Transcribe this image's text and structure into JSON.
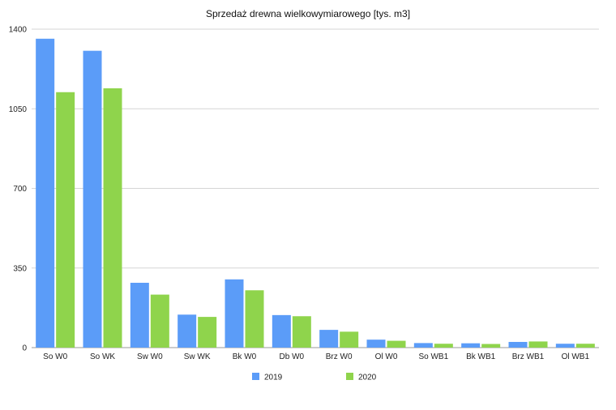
{
  "chart_data": {
    "type": "bar",
    "title": "Sprzedaż drewna wielkowymiarowego [tys. m3]",
    "xlabel": "",
    "ylabel": "",
    "ylim": [
      0,
      1400
    ],
    "yticks": [
      0,
      350,
      700,
      1050,
      1400
    ],
    "grid": true,
    "legend_position": "bottom",
    "categories": [
      "So W0",
      "So WK",
      "Sw W0",
      "Sw WK",
      "Bk W0",
      "Db W0",
      "Brz W0",
      "Ol W0",
      "So WB1",
      "Bk WB1",
      "Brz WB1",
      "Ol WB1"
    ],
    "series": [
      {
        "name": "2019",
        "color": "#5b9cf8",
        "values": [
          1358,
          1305,
          285,
          145,
          300,
          143,
          78,
          35,
          20,
          19,
          25,
          17
        ]
      },
      {
        "name": "2020",
        "color": "#8fd44c",
        "values": [
          1123,
          1140,
          233,
          135,
          252,
          138,
          70,
          30,
          17,
          16,
          27,
          17
        ]
      }
    ]
  }
}
